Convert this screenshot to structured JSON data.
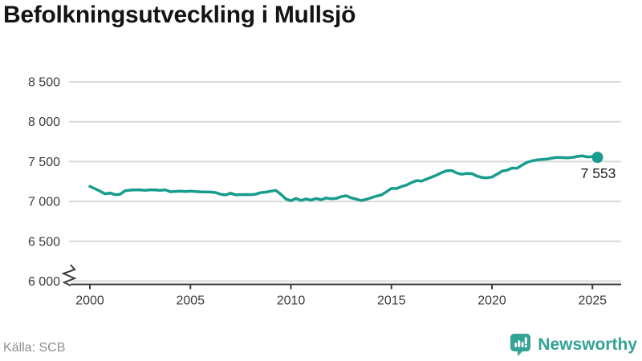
{
  "header": {
    "title": "Befolkningsutveckling i Mullsjö"
  },
  "footer": {
    "source": "Källa: SCB",
    "brand": "Newsworthy"
  },
  "colors": {
    "line": "#189c8d",
    "brand": "#34a396",
    "grid": "#d9d9d9",
    "axis": "#3c3c3c",
    "tick_text": "#3c3c3c",
    "end_label": "#232323",
    "title": "#141414",
    "source_text": "#8e8e8e"
  },
  "chart_data": {
    "type": "line",
    "title": "Befolkningsutveckling i Mullsjö",
    "xlabel": "",
    "ylabel": "",
    "grid": "horizontal",
    "legend": "none",
    "xlim": [
      1999,
      2026.5
    ],
    "ylim": [
      6000,
      8500
    ],
    "axis_break_at_bottom": true,
    "x_ticks": [
      2000,
      2005,
      2010,
      2015,
      2020,
      2025
    ],
    "x_tick_labels": [
      "2000",
      "2005",
      "2010",
      "2015",
      "2020",
      "2025"
    ],
    "y_ticks": [
      6000,
      6500,
      7000,
      7500,
      8000,
      8500
    ],
    "y_tick_labels": [
      "6 000",
      "6 500",
      "7 000",
      "7 500",
      "8 000",
      "8 500"
    ],
    "end_label": "7 553",
    "end_value": 7553,
    "x": [
      2000,
      2000.25,
      2000.5,
      2000.75,
      2001,
      2001.25,
      2001.5,
      2001.75,
      2002,
      2002.25,
      2002.5,
      2002.75,
      2003,
      2003.25,
      2003.5,
      2003.75,
      2004,
      2004.25,
      2004.5,
      2004.75,
      2005,
      2005.25,
      2005.5,
      2005.75,
      2006,
      2006.25,
      2006.5,
      2006.75,
      2007,
      2007.25,
      2007.5,
      2007.75,
      2008,
      2008.25,
      2008.5,
      2008.75,
      2009,
      2009.25,
      2009.5,
      2009.75,
      2010,
      2010.25,
      2010.5,
      2010.75,
      2011,
      2011.25,
      2011.5,
      2011.75,
      2012,
      2012.25,
      2012.5,
      2012.75,
      2013,
      2013.25,
      2013.5,
      2013.75,
      2014,
      2014.25,
      2014.5,
      2014.75,
      2015,
      2015.25,
      2015.5,
      2015.75,
      2016,
      2016.25,
      2016.5,
      2016.75,
      2017,
      2017.25,
      2017.5,
      2017.75,
      2018,
      2018.25,
      2018.5,
      2018.75,
      2019,
      2019.25,
      2019.5,
      2019.75,
      2020,
      2020.25,
      2020.5,
      2020.75,
      2021,
      2021.25,
      2021.5,
      2021.75,
      2022,
      2022.25,
      2022.5,
      2022.75,
      2023,
      2023.25,
      2023.5,
      2023.75,
      2024,
      2024.25,
      2024.5,
      2024.75,
      2025,
      2025.25
    ],
    "series": [
      {
        "name": "Befolkning i Mullsjö",
        "values": [
          7189,
          7160,
          7130,
          7096,
          7106,
          7086,
          7090,
          7134,
          7142,
          7146,
          7144,
          7140,
          7146,
          7144,
          7140,
          7146,
          7122,
          7126,
          7130,
          7125,
          7129,
          7124,
          7121,
          7119,
          7118,
          7112,
          7091,
          7081,
          7104,
          7082,
          7086,
          7087,
          7086,
          7091,
          7111,
          7117,
          7129,
          7138,
          7090,
          7031,
          7009,
          7037,
          7013,
          7031,
          7017,
          7037,
          7021,
          7043,
          7033,
          7038,
          7060,
          7071,
          7044,
          7029,
          7011,
          7026,
          7046,
          7066,
          7081,
          7121,
          7164,
          7161,
          7187,
          7205,
          7236,
          7262,
          7256,
          7281,
          7306,
          7331,
          7361,
          7384,
          7387,
          7356,
          7341,
          7351,
          7349,
          7318,
          7301,
          7296,
          7306,
          7341,
          7379,
          7391,
          7419,
          7416,
          7456,
          7491,
          7509,
          7521,
          7526,
          7531,
          7544,
          7551,
          7549,
          7546,
          7551,
          7564,
          7571,
          7558,
          7561,
          7553
        ]
      }
    ]
  }
}
